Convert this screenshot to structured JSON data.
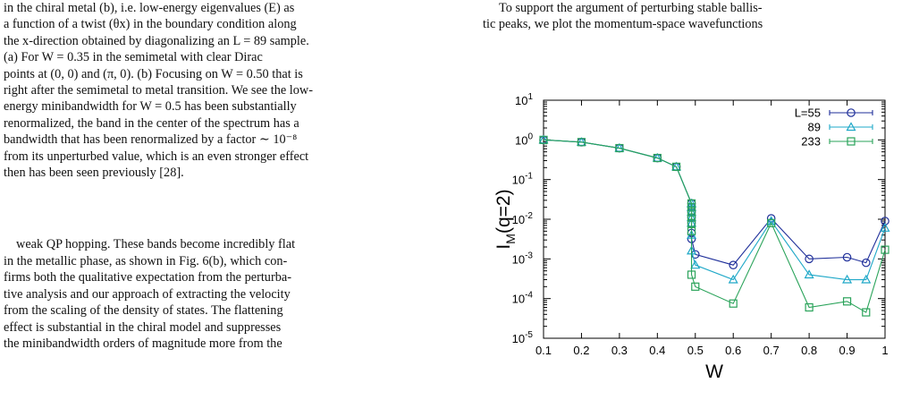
{
  "left_column": {
    "caption_lines": [
      "in the chiral metal (b), i.e.  low-energy eigenvalues (E) as",
      "a function of a twist (θx) in the boundary condition along",
      "the x-direction obtained by diagonalizing an L = 89 sample.",
      "(a) For W = 0.35 in the semimetal with clear Dirac",
      "points at (0, 0) and (π, 0). (b) Focusing on W = 0.50 that is",
      "right after the semimetal to metal transition. We see the low-",
      "energy minibandwidth for W = 0.5 has been substantially",
      "renormalized, the band in the center of the spectrum has a",
      "bandwidth that has been renormalized by a factor ∼ 10⁻⁸",
      "from its unperturbed value, which is an even stronger effect",
      "then has been seen previously [28]."
    ],
    "body_lines": [
      "weak QP hopping.  These bands become incredibly flat",
      "in the metallic phase, as shown in Fig. 6(b), which con-",
      "firms both the qualitative expectation from the perturba-",
      "tive analysis and our approach of extracting the velocity",
      "from the scaling of the density of states. The flattening",
      "effect is substantial in the chiral model and suppresses",
      "the minibandwidth orders of magnitude more from the"
    ]
  },
  "right_column": {
    "lines": [
      "To support the argument of perturbing stable ballis-",
      "tic peaks, we plot the momentum-space wavefunctions"
    ]
  },
  "chart_data": {
    "type": "line",
    "xlabel": "W",
    "ylabel": "I_M(q=2)",
    "x_scale": "linear",
    "y_scale": "log",
    "xlim": [
      0.1,
      1.0
    ],
    "ylim": [
      1e-05,
      10
    ],
    "x_ticks": [
      "0.1",
      "0.2",
      "0.3",
      "0.4",
      "0.5",
      "0.6",
      "0.7",
      "0.8",
      "0.9",
      "1"
    ],
    "y_ticks": [
      {
        "base": "10",
        "exp": "1"
      },
      {
        "base": "10",
        "exp": "0"
      },
      {
        "base": "10",
        "exp": "-1"
      },
      {
        "base": "10",
        "exp": "-2"
      },
      {
        "base": "10",
        "exp": "-3"
      },
      {
        "base": "10",
        "exp": "-4"
      },
      {
        "base": "10",
        "exp": "-5"
      }
    ],
    "legend_position": "top-right",
    "series": [
      {
        "name": "L=55",
        "color": "#1f2f9a",
        "marker": "circle",
        "x": [
          0.1,
          0.2,
          0.3,
          0.4,
          0.45,
          0.49,
          0.49,
          0.49,
          0.49,
          0.49,
          0.49,
          0.49,
          0.5,
          0.6,
          0.7,
          0.8,
          0.9,
          0.95,
          1.0
        ],
        "y": [
          1.0,
          0.88,
          0.62,
          0.35,
          0.21,
          0.025,
          0.02,
          0.015,
          0.011,
          0.008,
          0.0045,
          0.0032,
          0.0013,
          0.0007,
          0.0105,
          0.001,
          0.0011,
          0.0008,
          0.009
        ]
      },
      {
        "name": "89",
        "color": "#1fa8c8",
        "marker": "triangle",
        "x": [
          0.1,
          0.2,
          0.3,
          0.4,
          0.45,
          0.49,
          0.49,
          0.49,
          0.49,
          0.49,
          0.49,
          0.49,
          0.5,
          0.6,
          0.7,
          0.8,
          0.9,
          0.95,
          1.0
        ],
        "y": [
          1.0,
          0.88,
          0.62,
          0.35,
          0.21,
          0.025,
          0.02,
          0.015,
          0.011,
          0.008,
          0.004,
          0.0016,
          0.0007,
          0.0003,
          0.009,
          0.0004,
          0.0003,
          0.0003,
          0.006
        ]
      },
      {
        "name": "233",
        "color": "#2aa35a",
        "marker": "square",
        "x": [
          0.1,
          0.2,
          0.3,
          0.4,
          0.45,
          0.49,
          0.49,
          0.49,
          0.49,
          0.49,
          0.49,
          0.49,
          0.5,
          0.6,
          0.7,
          0.8,
          0.9,
          0.95,
          1.0
        ],
        "y": [
          1.0,
          0.88,
          0.62,
          0.35,
          0.21,
          0.025,
          0.02,
          0.015,
          0.011,
          0.008,
          0.005,
          0.0004,
          0.0002,
          7.5e-05,
          0.008,
          6e-05,
          8.5e-05,
          4.5e-05,
          0.0017
        ]
      }
    ]
  }
}
